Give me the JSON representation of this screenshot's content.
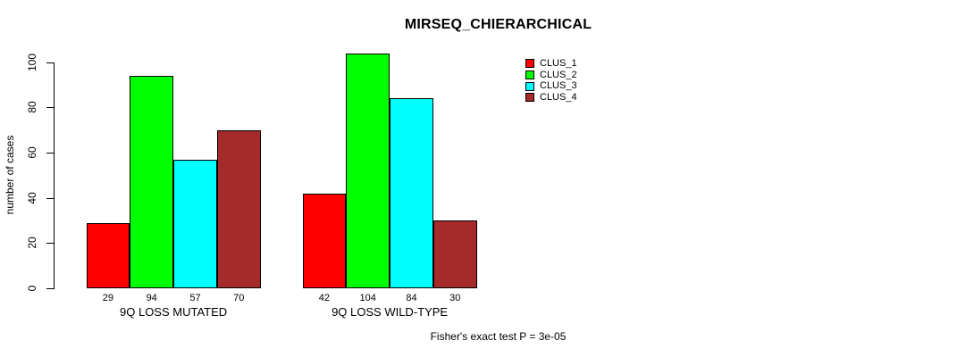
{
  "chart_data": {
    "type": "bar",
    "title": "MIRSEQ_CHIERARCHICAL",
    "ylabel": "number of cases",
    "xlabel": "",
    "ylim": [
      0,
      110
    ],
    "yticks": [
      0,
      20,
      40,
      60,
      80,
      100
    ],
    "grid": false,
    "legend_position": "top-right",
    "categories": [
      "9Q LOSS MUTATED",
      "9Q LOSS WILD-TYPE"
    ],
    "series": [
      {
        "name": "CLUS_1",
        "color": "#ff0000",
        "values": [
          29,
          42
        ]
      },
      {
        "name": "CLUS_2",
        "color": "#00ff00",
        "values": [
          94,
          104
        ]
      },
      {
        "name": "CLUS_3",
        "color": "#00ffff",
        "values": [
          57,
          84
        ]
      },
      {
        "name": "CLUS_4",
        "color": "#a52a2a",
        "values": [
          70,
          30
        ]
      }
    ],
    "bar_value_labels": [
      [
        29,
        94,
        57,
        70
      ],
      [
        42,
        104,
        84,
        30
      ]
    ],
    "annotation": "Fisher's exact test P = 3e-05"
  }
}
